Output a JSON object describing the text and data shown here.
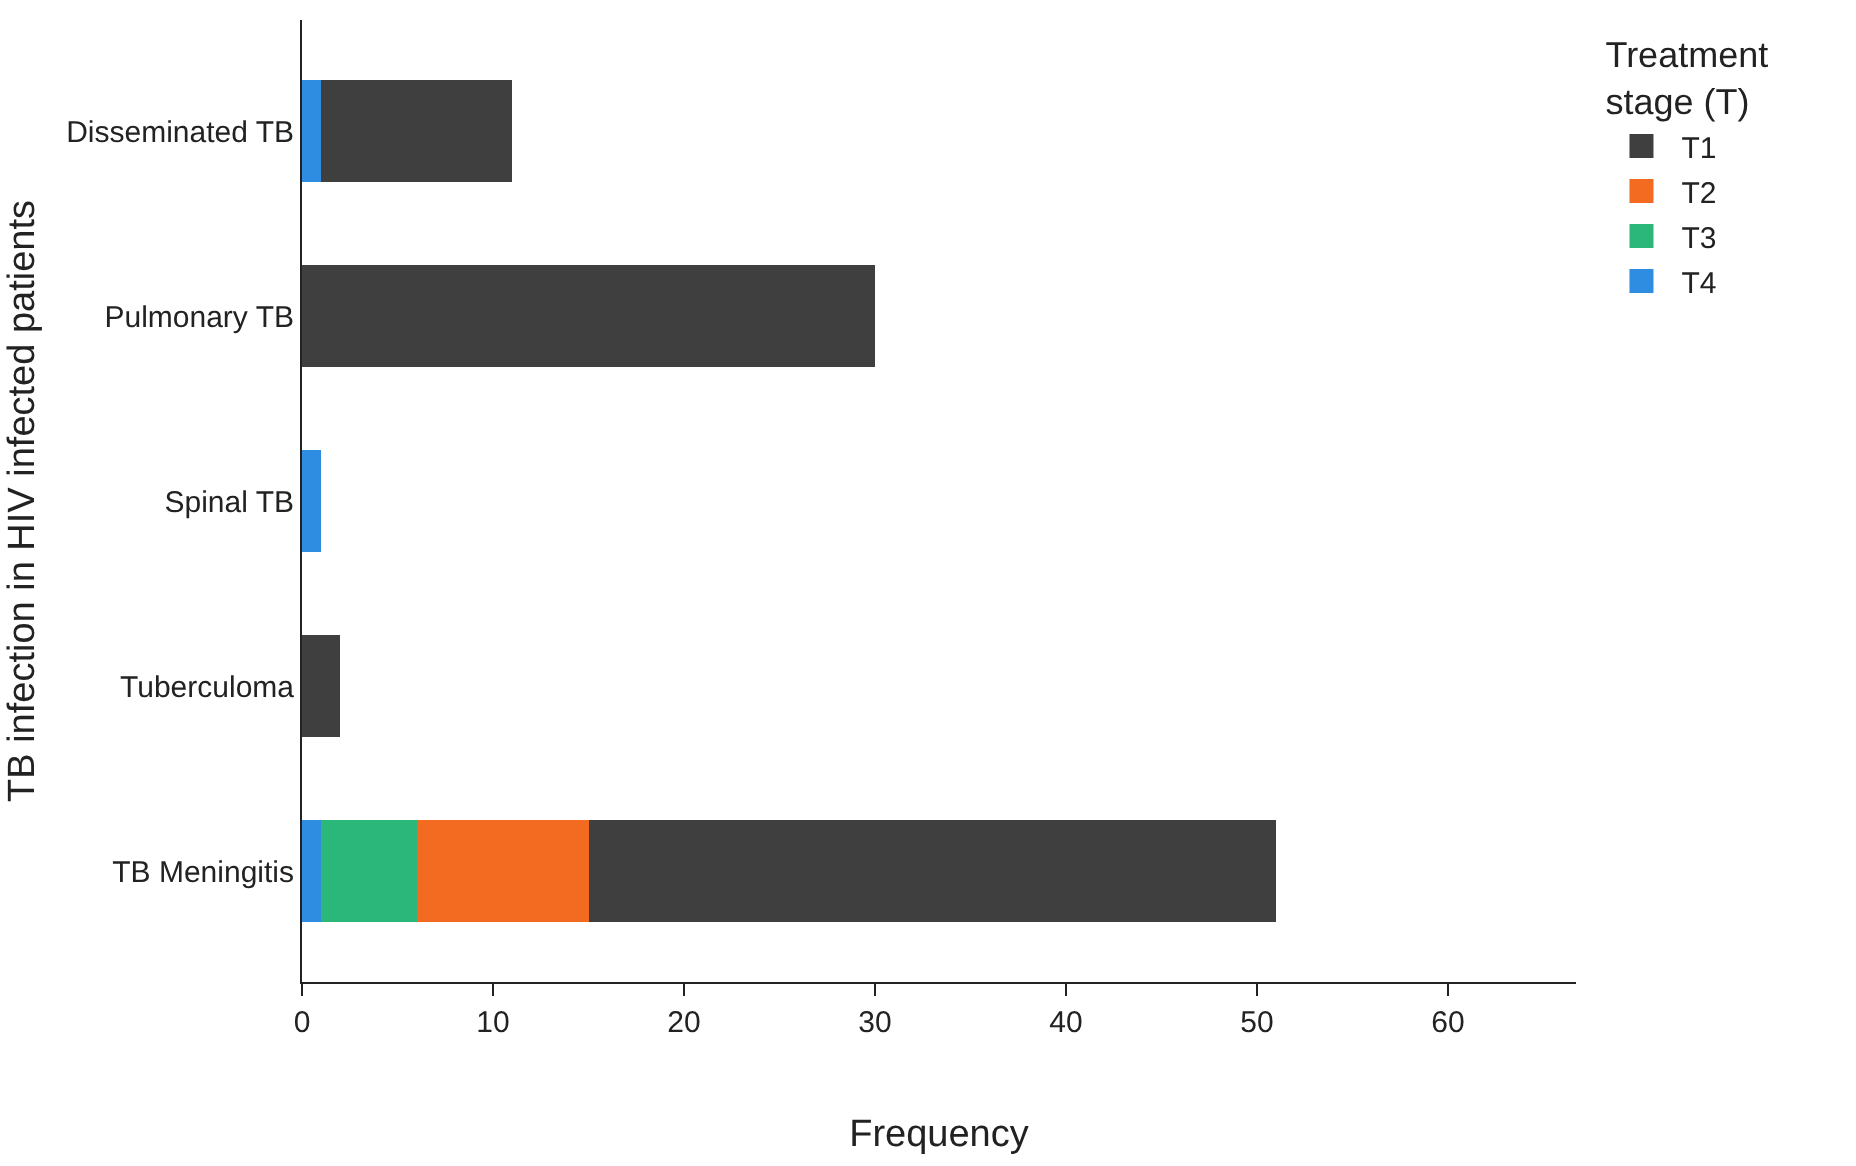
{
  "chart_data": {
    "type": "bar",
    "orientation": "horizontal",
    "stacked": true,
    "xlabel": "Frequency",
    "ylabel": "TB infection in HIV infected patients",
    "legend_title": "Treatment stage (T)",
    "categories": [
      "Disseminated TB",
      "Pulmonary TB",
      "Spinal TB",
      "Tuberculoma",
      "TB Meningitis"
    ],
    "series": [
      {
        "name": "T4",
        "color": "#2e8de0",
        "values": [
          1,
          null,
          1,
          null,
          1
        ]
      },
      {
        "name": "T3",
        "color": "#2bb67a",
        "values": [
          null,
          null,
          null,
          null,
          5
        ]
      },
      {
        "name": "T2",
        "color": "#f26b21",
        "values": [
          null,
          null,
          null,
          null,
          9
        ]
      },
      {
        "name": "T1",
        "color": "#3f3f3f",
        "values": [
          10,
          30,
          null,
          2,
          36
        ]
      }
    ],
    "xlim": [
      0,
      66.7
    ],
    "xticks": [
      0,
      10,
      20,
      30,
      40,
      50,
      60
    ],
    "legend": "top right"
  }
}
